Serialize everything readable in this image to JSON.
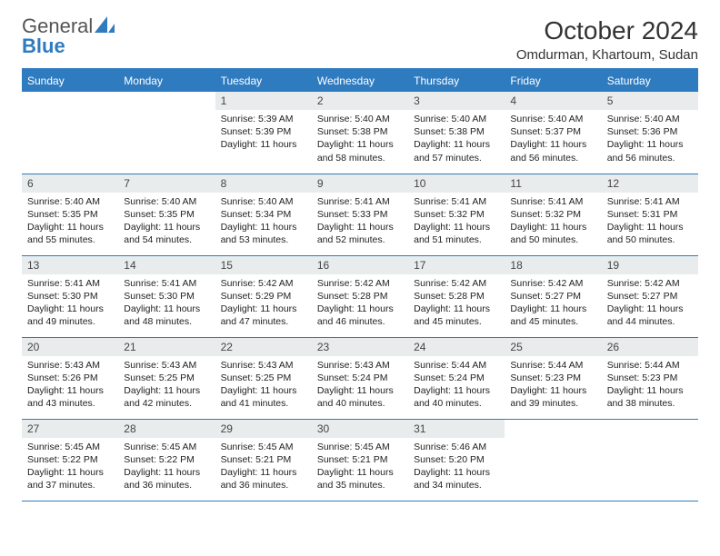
{
  "brand": {
    "part1": "General",
    "part2": "Blue"
  },
  "title": "October 2024",
  "location": "Omdurman, Khartoum, Sudan",
  "colors": {
    "header_bg": "#2f7bbf",
    "header_text": "#ffffff",
    "daynum_bg": "#e8eced",
    "border": "#2f7bbf",
    "logo_blue": "#2f7bbf",
    "logo_gray": "#555555"
  },
  "weekdays": [
    "Sunday",
    "Monday",
    "Tuesday",
    "Wednesday",
    "Thursday",
    "Friday",
    "Saturday"
  ],
  "weeks": [
    [
      null,
      null,
      {
        "n": "1",
        "sr": "5:39 AM",
        "ss": "5:39 PM",
        "dl": "11 hours"
      },
      {
        "n": "2",
        "sr": "5:40 AM",
        "ss": "5:38 PM",
        "dl": "11 hours and 58 minutes."
      },
      {
        "n": "3",
        "sr": "5:40 AM",
        "ss": "5:38 PM",
        "dl": "11 hours and 57 minutes."
      },
      {
        "n": "4",
        "sr": "5:40 AM",
        "ss": "5:37 PM",
        "dl": "11 hours and 56 minutes."
      },
      {
        "n": "5",
        "sr": "5:40 AM",
        "ss": "5:36 PM",
        "dl": "11 hours and 56 minutes."
      }
    ],
    [
      {
        "n": "6",
        "sr": "5:40 AM",
        "ss": "5:35 PM",
        "dl": "11 hours and 55 minutes."
      },
      {
        "n": "7",
        "sr": "5:40 AM",
        "ss": "5:35 PM",
        "dl": "11 hours and 54 minutes."
      },
      {
        "n": "8",
        "sr": "5:40 AM",
        "ss": "5:34 PM",
        "dl": "11 hours and 53 minutes."
      },
      {
        "n": "9",
        "sr": "5:41 AM",
        "ss": "5:33 PM",
        "dl": "11 hours and 52 minutes."
      },
      {
        "n": "10",
        "sr": "5:41 AM",
        "ss": "5:32 PM",
        "dl": "11 hours and 51 minutes."
      },
      {
        "n": "11",
        "sr": "5:41 AM",
        "ss": "5:32 PM",
        "dl": "11 hours and 50 minutes."
      },
      {
        "n": "12",
        "sr": "5:41 AM",
        "ss": "5:31 PM",
        "dl": "11 hours and 50 minutes."
      }
    ],
    [
      {
        "n": "13",
        "sr": "5:41 AM",
        "ss": "5:30 PM",
        "dl": "11 hours and 49 minutes."
      },
      {
        "n": "14",
        "sr": "5:41 AM",
        "ss": "5:30 PM",
        "dl": "11 hours and 48 minutes."
      },
      {
        "n": "15",
        "sr": "5:42 AM",
        "ss": "5:29 PM",
        "dl": "11 hours and 47 minutes."
      },
      {
        "n": "16",
        "sr": "5:42 AM",
        "ss": "5:28 PM",
        "dl": "11 hours and 46 minutes."
      },
      {
        "n": "17",
        "sr": "5:42 AM",
        "ss": "5:28 PM",
        "dl": "11 hours and 45 minutes."
      },
      {
        "n": "18",
        "sr": "5:42 AM",
        "ss": "5:27 PM",
        "dl": "11 hours and 45 minutes."
      },
      {
        "n": "19",
        "sr": "5:42 AM",
        "ss": "5:27 PM",
        "dl": "11 hours and 44 minutes."
      }
    ],
    [
      {
        "n": "20",
        "sr": "5:43 AM",
        "ss": "5:26 PM",
        "dl": "11 hours and 43 minutes."
      },
      {
        "n": "21",
        "sr": "5:43 AM",
        "ss": "5:25 PM",
        "dl": "11 hours and 42 minutes."
      },
      {
        "n": "22",
        "sr": "5:43 AM",
        "ss": "5:25 PM",
        "dl": "11 hours and 41 minutes."
      },
      {
        "n": "23",
        "sr": "5:43 AM",
        "ss": "5:24 PM",
        "dl": "11 hours and 40 minutes."
      },
      {
        "n": "24",
        "sr": "5:44 AM",
        "ss": "5:24 PM",
        "dl": "11 hours and 40 minutes."
      },
      {
        "n": "25",
        "sr": "5:44 AM",
        "ss": "5:23 PM",
        "dl": "11 hours and 39 minutes."
      },
      {
        "n": "26",
        "sr": "5:44 AM",
        "ss": "5:23 PM",
        "dl": "11 hours and 38 minutes."
      }
    ],
    [
      {
        "n": "27",
        "sr": "5:45 AM",
        "ss": "5:22 PM",
        "dl": "11 hours and 37 minutes."
      },
      {
        "n": "28",
        "sr": "5:45 AM",
        "ss": "5:22 PM",
        "dl": "11 hours and 36 minutes."
      },
      {
        "n": "29",
        "sr": "5:45 AM",
        "ss": "5:21 PM",
        "dl": "11 hours and 36 minutes."
      },
      {
        "n": "30",
        "sr": "5:45 AM",
        "ss": "5:21 PM",
        "dl": "11 hours and 35 minutes."
      },
      {
        "n": "31",
        "sr": "5:46 AM",
        "ss": "5:20 PM",
        "dl": "11 hours and 34 minutes."
      },
      null,
      null
    ]
  ],
  "labels": {
    "sunrise": "Sunrise:",
    "sunset": "Sunset:",
    "daylight": "Daylight:"
  }
}
